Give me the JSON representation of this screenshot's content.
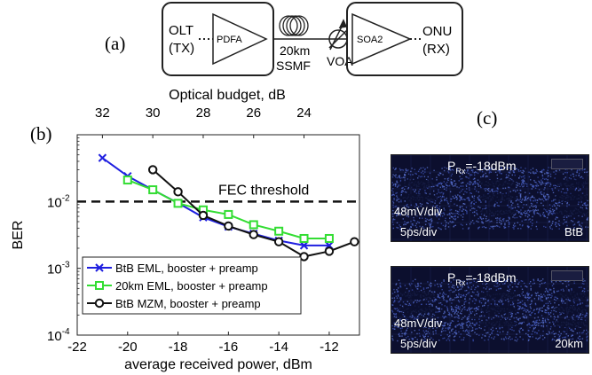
{
  "panel_labels": {
    "a": "(a)",
    "b": "(b)",
    "c": "(c)"
  },
  "diagram": {
    "olt_line1": "OLT",
    "olt_line2": "(TX)",
    "amp1": "PDFA",
    "fiber_line1": "20km",
    "fiber_line2": "SSMF",
    "voa": "VOA",
    "amp2": "SOA2",
    "onu_line1": "ONU",
    "onu_line2": "(RX)"
  },
  "chart_data": {
    "type": "line",
    "title": "",
    "xlabel": "average received power, dBm",
    "ylabel": "BER",
    "top_xlabel": "Optical budget, dB",
    "x_ticks": [
      -22,
      -20,
      -18,
      -16,
      -14,
      -12
    ],
    "x_tick_labels": [
      "-22",
      "-20",
      "-18",
      "-16",
      "-14",
      "-12"
    ],
    "top_ticks": [
      32,
      30,
      28,
      26,
      24
    ],
    "top_tick_labels": [
      "32",
      "30",
      "28",
      "26",
      "24"
    ],
    "y_tick_labels": [
      {
        "value": 0.0001,
        "base": "10",
        "exp": "-4"
      },
      {
        "value": 0.001,
        "base": "10",
        "exp": "-3"
      },
      {
        "value": 0.01,
        "base": "10",
        "exp": "-2"
      }
    ],
    "xlim": [
      -22,
      -10.8
    ],
    "ylim": [
      0.0001,
      0.1
    ],
    "yscale": "log",
    "fec": {
      "label": "FEC threshold",
      "value": 0.01
    },
    "legend_position": "bottom-left",
    "series": [
      {
        "name": "BtB EML, booster + preamp",
        "color": "#1f1fe0",
        "marker": "x",
        "x": [
          -21,
          -20,
          -19,
          -18,
          -17,
          -16,
          -15,
          -14,
          -13,
          -12
        ],
        "y": [
          0.045,
          0.024,
          0.015,
          0.0095,
          0.0058,
          0.0042,
          0.0033,
          0.0026,
          0.0022,
          0.0022
        ]
      },
      {
        "name": "20km EML, booster + preamp",
        "color": "#33dd33",
        "marker": "square",
        "x": [
          -20,
          -19,
          -18,
          -17,
          -16,
          -15,
          -14,
          -13,
          -12
        ],
        "y": [
          0.021,
          0.015,
          0.0094,
          0.0075,
          0.0064,
          0.0045,
          0.0036,
          0.0028,
          0.0028
        ]
      },
      {
        "name": "BtB MZM, booster + preamp",
        "color": "#111111",
        "marker": "circle",
        "x": [
          -19,
          -18,
          -17,
          -16,
          -15,
          -14,
          -13,
          -12,
          -11
        ],
        "y": [
          0.03,
          0.014,
          0.0062,
          0.0043,
          0.0032,
          0.0025,
          0.0015,
          0.0018,
          0.0025
        ]
      }
    ]
  },
  "eyes": [
    {
      "power_prefix": "P",
      "power_sub": "Rx",
      "power_value": "=-18dBm",
      "vscale": "48mV/div",
      "hscale": "5ps/div",
      "tag": "BtB"
    },
    {
      "power_prefix": "P",
      "power_sub": "Rx",
      "power_value": "=-18dBm",
      "vscale": "48mV/div",
      "hscale": "5ps/div",
      "tag": "20km"
    }
  ]
}
